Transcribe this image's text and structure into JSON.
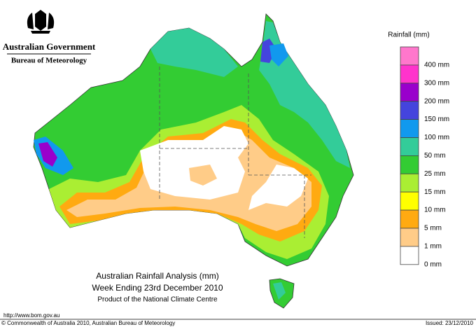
{
  "header": {
    "government": "Australian Government",
    "bureau": "Bureau of Meteorology"
  },
  "legend": {
    "title": "Rainfall (mm)",
    "items": [
      {
        "label": "400 mm",
        "color": "#ff77cc"
      },
      {
        "label": "300 mm",
        "color": "#ff33cc"
      },
      {
        "label": "200 mm",
        "color": "#9900cc"
      },
      {
        "label": "150 mm",
        "color": "#4444dd"
      },
      {
        "label": "100 mm",
        "color": "#1199ee"
      },
      {
        "label": "50 mm",
        "color": "#33cc99"
      },
      {
        "label": "25 mm",
        "color": "#33cc33"
      },
      {
        "label": "15 mm",
        "color": "#aaee33"
      },
      {
        "label": "10 mm",
        "color": "#ffff00"
      },
      {
        "label": "5 mm",
        "color": "#ffaa11"
      },
      {
        "label": "1 mm",
        "color": "#ffcc88"
      },
      {
        "label": "0 mm",
        "color": "#ffffff"
      }
    ]
  },
  "titles": [
    "Australian Rainfall Analysis (mm)",
    "Week Ending 23rd December 2010",
    "Product of the National Climate Centre"
  ],
  "footer": {
    "url": "http://www.bom.gov.au",
    "copyright": "© Commonwealth of Australia 2010, Australian Bureau of Meteorology",
    "issued": "Issued: 23/12/2010"
  }
}
